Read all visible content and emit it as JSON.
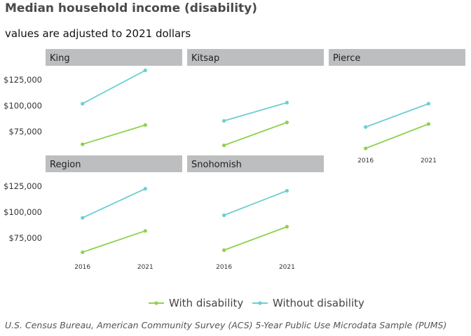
{
  "chart_data": {
    "type": "line",
    "title": "Median household income (disability)",
    "subtitle": "values are adjusted to 2021 dollars",
    "caption": "U.S. Census Bureau, American Community Survey (ACS) 5-Year Public Use Microdata Sample (PUMS)",
    "x": [
      "2016",
      "2021"
    ],
    "ylim": [
      55000,
      137000
    ],
    "yticks": [
      "$75,000",
      "$100,000",
      "$125,000"
    ],
    "ytick_values": [
      75000,
      100000,
      125000
    ],
    "series_meta": [
      {
        "name": "With disability",
        "color": "#8fd14f"
      },
      {
        "name": "Without disability",
        "color": "#6ccfd0"
      }
    ],
    "panels": [
      {
        "name": "King",
        "series": [
          {
            "name": "With disability",
            "values": [
              63000,
              81500
            ]
          },
          {
            "name": "Without disability",
            "values": [
              102000,
              134000
            ]
          }
        ]
      },
      {
        "name": "Kitsap",
        "series": [
          {
            "name": "With disability",
            "values": [
              62000,
              84000
            ]
          },
          {
            "name": "Without disability",
            "values": [
              85500,
              103000
            ]
          }
        ]
      },
      {
        "name": "Pierce",
        "series": [
          {
            "name": "With disability",
            "values": [
              59000,
              82500
            ]
          },
          {
            "name": "Without disability",
            "values": [
              79500,
              102000
            ]
          }
        ]
      },
      {
        "name": "Region",
        "series": [
          {
            "name": "With disability",
            "values": [
              61500,
              82000
            ]
          },
          {
            "name": "Without disability",
            "values": [
              94500,
              122500
            ]
          }
        ]
      },
      {
        "name": "Snohomish",
        "series": [
          {
            "name": "With disability",
            "values": [
              63500,
              86000
            ]
          },
          {
            "name": "Without disability",
            "values": [
              97000,
              120500
            ]
          }
        ]
      }
    ]
  }
}
